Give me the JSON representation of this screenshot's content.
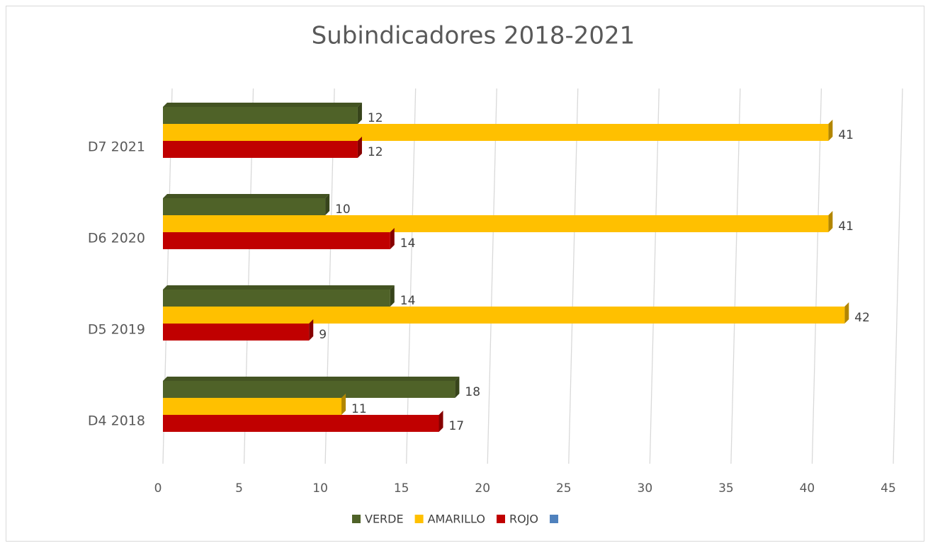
{
  "chart_data": {
    "type": "bar",
    "orientation": "horizontal",
    "3d": true,
    "title": "Subindicadores 2018-2021",
    "categories": [
      "D4 2018",
      "D5 2019",
      "D6 2020",
      "D7 2021"
    ],
    "series": [
      {
        "name": "VERDE",
        "color": "#4f6228",
        "values": [
          18,
          14,
          10,
          12
        ]
      },
      {
        "name": "AMARILLO",
        "color": "#ffc000",
        "values": [
          11,
          42,
          41,
          41
        ]
      },
      {
        "name": "ROJO",
        "color": "#c00000",
        "values": [
          17,
          9,
          14,
          12
        ]
      },
      {
        "color": "#4f81bd",
        "values": [
          null,
          null,
          null,
          null
        ]
      }
    ],
    "xlim": [
      0,
      45
    ],
    "xticks": [
      0,
      5,
      10,
      15,
      20,
      25,
      30,
      35,
      40,
      45
    ],
    "grid": true,
    "legend": "bottom"
  }
}
